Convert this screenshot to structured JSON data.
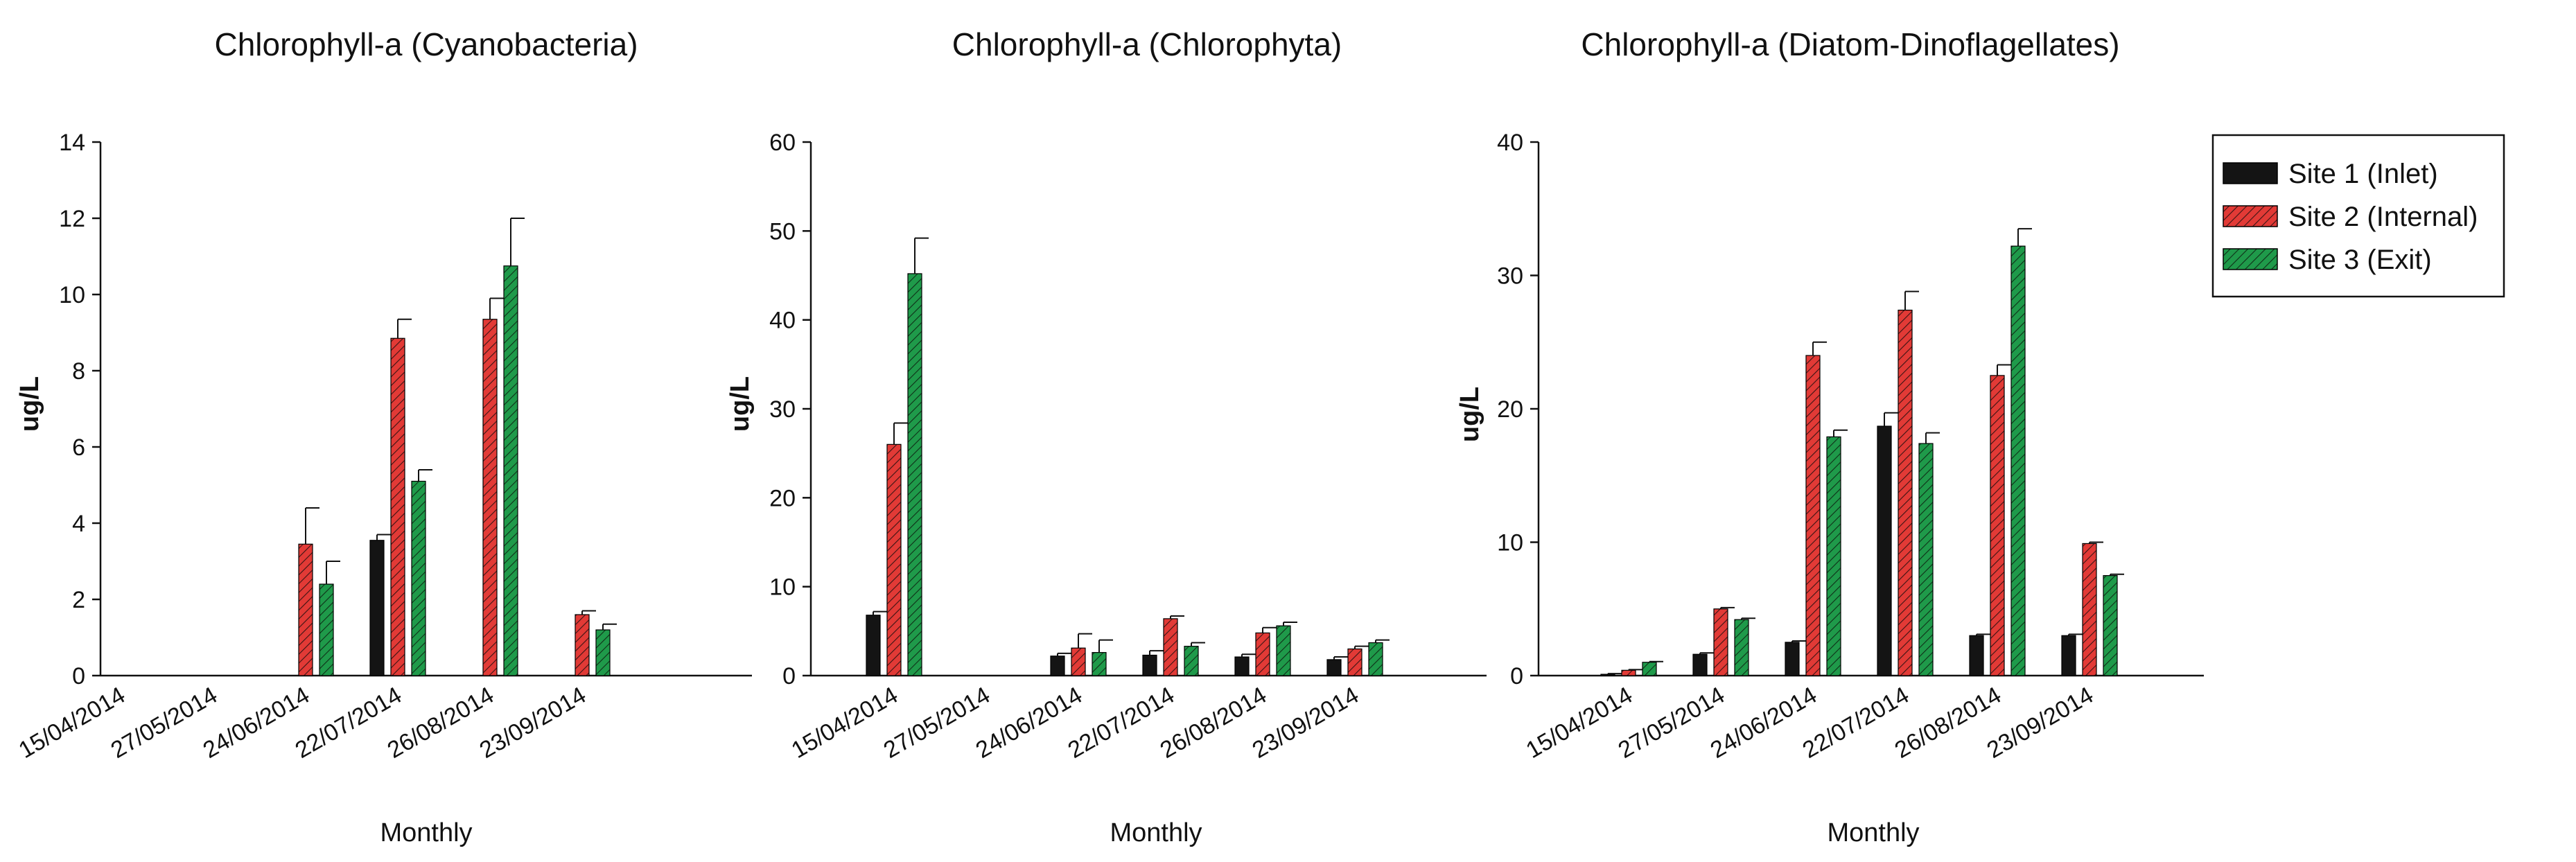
{
  "chart_data": [
    {
      "type": "bar",
      "title": "Chlorophyll-a (Cyanobacteria)",
      "xlabel": "Monthly",
      "ylabel": "ug/L",
      "ylim": [
        0,
        14
      ],
      "yticks": [
        0,
        2,
        4,
        6,
        8,
        10,
        12,
        14
      ],
      "categories": [
        "15/04/2014",
        "27/05/2014",
        "24/06/2014",
        "22/07/2014",
        "26/08/2014",
        "23/09/2014"
      ],
      "series": [
        {
          "name": "Site 1 (Inlet)",
          "values": [
            0,
            0,
            0,
            3.55,
            0,
            0
          ],
          "errors": [
            0,
            0,
            0,
            0.15,
            0,
            0
          ]
        },
        {
          "name": "Site 2 (Internal)",
          "values": [
            0,
            0,
            3.45,
            8.85,
            9.35,
            1.6
          ],
          "errors": [
            0,
            0,
            0.95,
            0.5,
            0.55,
            0.1
          ]
        },
        {
          "name": "Site 3 (Exit)",
          "values": [
            0,
            0,
            2.4,
            5.1,
            10.75,
            1.2
          ],
          "errors": [
            0,
            0,
            0.6,
            0.3,
            1.25,
            0.15
          ]
        }
      ]
    },
    {
      "type": "bar",
      "title": "Chlorophyll-a (Chlorophyta)",
      "xlabel": "Monthly",
      "ylabel": "ug/L",
      "ylim": [
        0,
        60
      ],
      "yticks": [
        0,
        10,
        20,
        30,
        40,
        50,
        60
      ],
      "categories": [
        "15/04/2014",
        "27/05/2014",
        "24/06/2014",
        "22/07/2014",
        "26/08/2014",
        "23/09/2014"
      ],
      "series": [
        {
          "name": "Site 1 (Inlet)",
          "values": [
            6.8,
            0,
            2.2,
            2.3,
            2.1,
            1.8
          ],
          "errors": [
            0.4,
            0,
            0.3,
            0.5,
            0.3,
            0.3
          ]
        },
        {
          "name": "Site 2 (Internal)",
          "values": [
            26.0,
            0,
            3.1,
            6.4,
            4.8,
            3.0
          ],
          "errors": [
            2.4,
            0,
            1.6,
            0.3,
            0.6,
            0.3
          ]
        },
        {
          "name": "Site 3 (Exit)",
          "values": [
            45.2,
            0,
            2.6,
            3.3,
            5.6,
            3.7
          ],
          "errors": [
            4.0,
            0,
            1.4,
            0.4,
            0.4,
            0.3
          ]
        }
      ]
    },
    {
      "type": "bar",
      "title": "Chlorophyll-a (Diatom-Dinoflagellates)",
      "xlabel": "Monthly",
      "ylabel": "ug/L",
      "ylim": [
        0,
        40
      ],
      "yticks": [
        0,
        10,
        20,
        30,
        40
      ],
      "categories": [
        "15/04/2014",
        "27/05/2014",
        "24/06/2014",
        "22/07/2014",
        "26/08/2014",
        "23/09/2014"
      ],
      "series": [
        {
          "name": "Site 1 (Inlet)",
          "values": [
            0.1,
            1.6,
            2.5,
            18.7,
            3.0,
            3.0
          ],
          "errors": [
            0.05,
            0.1,
            0.1,
            1.0,
            0.1,
            0.1
          ]
        },
        {
          "name": "Site 2 (Internal)",
          "values": [
            0.4,
            5.0,
            24.0,
            27.4,
            22.5,
            9.9
          ],
          "errors": [
            0.05,
            0.1,
            1.0,
            1.4,
            0.8,
            0.1
          ]
        },
        {
          "name": "Site 3 (Exit)",
          "values": [
            1.0,
            4.2,
            17.9,
            17.4,
            32.2,
            7.5
          ],
          "errors": [
            0.05,
            0.1,
            0.5,
            0.8,
            1.3,
            0.1
          ]
        }
      ]
    }
  ],
  "legend": {
    "position": "top-right",
    "entries": [
      "Site 1 (Inlet)",
      "Site 2 (Internal)",
      "Site 3 (Exit)"
    ]
  },
  "colors": {
    "site1": "#141414",
    "site2": "#e23a36",
    "site3": "#1f9a4a",
    "hatch": "#222222"
  }
}
